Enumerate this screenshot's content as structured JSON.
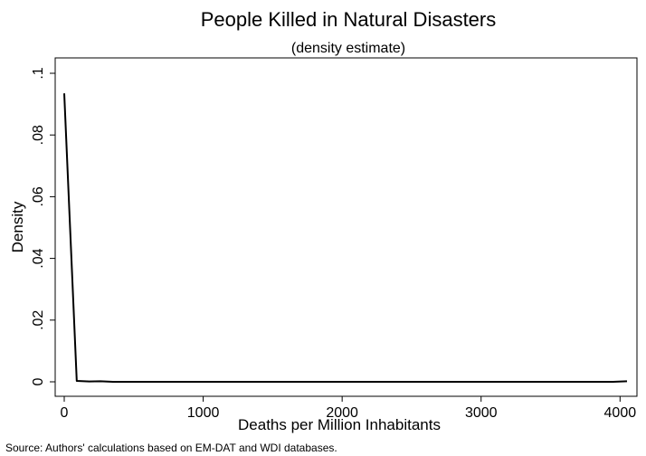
{
  "chart_data": {
    "type": "line",
    "title": "People Killed in Natural Disasters",
    "subtitle": "(density estimate)",
    "xlabel": "Deaths per Million Inhabitants",
    "ylabel": "Density",
    "note": "Source: Authors' calculations based on EM-DAT and WDI databases.",
    "xlim": [
      0,
      4050
    ],
    "ylim": [
      0,
      0.1
    ],
    "x_ticks": [
      0,
      1000,
      2000,
      3000,
      4000
    ],
    "x_tick_labels": [
      "0",
      "1000",
      "2000",
      "3000",
      "4000"
    ],
    "y_ticks": [
      0,
      0.02,
      0.04,
      0.06,
      0.08,
      0.1
    ],
    "y_tick_labels": [
      "0",
      ".02",
      ".04",
      ".06",
      ".08",
      ".1"
    ],
    "grid": false,
    "legend": "none",
    "series": [
      {
        "color": "#000000",
        "x": [
          0,
          90,
          180,
          260,
          350,
          500,
          1000,
          1500,
          2000,
          2500,
          3000,
          3500,
          3950,
          4050
        ],
        "y": [
          0.0935,
          0.0003,
          0.0001,
          0.0002,
          0.0,
          0.0,
          0.0,
          0.0,
          0.0,
          0.0,
          0.0,
          0.0,
          0.0,
          0.0002
        ]
      }
    ]
  }
}
